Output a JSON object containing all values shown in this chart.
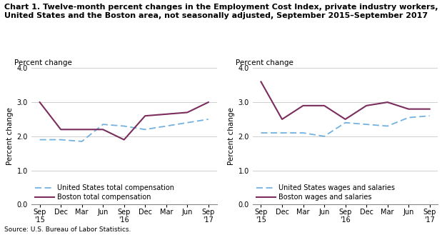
{
  "title_line1": "Chart 1. Twelve-month percent changes in the Employment Cost Index, private industry workers,",
  "title_line2": "United States and the Boston area, not seasonally adjusted, September 2015–September 2017",
  "source": "Source: U.S. Bureau of Labor Statistics.",
  "x_labels": [
    "Sep\n'15",
    "Dec",
    "Mar",
    "Jun",
    "Sep\n'16",
    "Dec",
    "Mar",
    "Jun",
    "Sep\n'17"
  ],
  "left_chart": {
    "ylabel": "Percent change",
    "us_total_comp": [
      1.9,
      1.9,
      1.85,
      2.35,
      2.3,
      2.2,
      2.3,
      2.4,
      2.5
    ],
    "boston_total_comp": [
      3.0,
      2.2,
      2.2,
      2.2,
      1.9,
      2.6,
      2.65,
      2.7,
      3.0
    ],
    "legend1": "United States total compensation",
    "legend2": "Boston total compensation"
  },
  "right_chart": {
    "ylabel": "Percent change",
    "us_wages": [
      2.1,
      2.1,
      2.1,
      2.0,
      2.4,
      2.35,
      2.3,
      2.55,
      2.6
    ],
    "boston_wages": [
      3.6,
      2.5,
      2.9,
      2.9,
      2.5,
      2.9,
      3.0,
      2.8,
      2.8
    ],
    "legend1": "United States wages and salaries",
    "legend2": "Boston wages and salaries"
  },
  "ylim": [
    0.0,
    4.0
  ],
  "yticks": [
    0.0,
    1.0,
    2.0,
    3.0,
    4.0
  ],
  "us_color": "#73b2e0",
  "boston_color": "#7b2d5e",
  "grid_color": "#c8c8c8",
  "title_fontsize": 8.0,
  "ylabel_fontsize": 7.5,
  "tick_fontsize": 7,
  "legend_fontsize": 7.0,
  "source_fontsize": 6.5
}
